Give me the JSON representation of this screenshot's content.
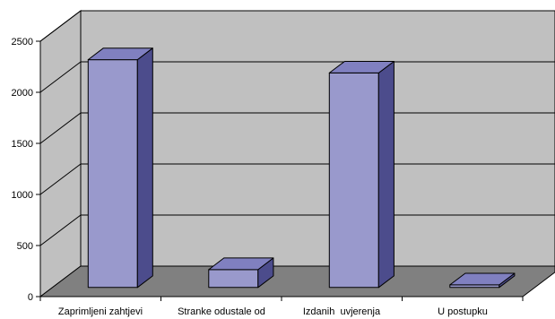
{
  "chart_data": {
    "type": "bar",
    "three_d": true,
    "categories": [
      "Zaprimljeni zahtjevi",
      "Stranke odustale od",
      "Izdanih  uvjerenja",
      "U postupku"
    ],
    "values": [
      2230,
      175,
      2100,
      25
    ],
    "ylim": [
      0,
      2500
    ],
    "yticks": [
      0,
      500,
      1000,
      1500,
      2000,
      2500
    ],
    "grid": true
  },
  "colors": {
    "bar_front": "#9999cc",
    "bar_top": "#8080c0",
    "bar_side": "#4c4c8c",
    "wall": "#c0c0c0",
    "floor": "#808080",
    "line": "#000000"
  }
}
